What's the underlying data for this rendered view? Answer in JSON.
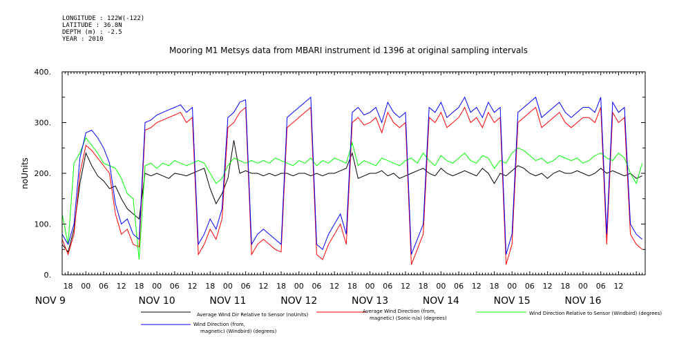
{
  "metadata": {
    "longitude": "LONGITUDE : 122W(-122)",
    "latitude": "LATITUDE : 36.8N",
    "depth": "DEPTH (m) : -2.5",
    "year": "YEAR : 2010"
  },
  "chart_data": {
    "type": "line",
    "title": "Mooring M1 Metsys data from MBARI instrument id 1396 at original sampling intervals",
    "ylabel": "noUnits",
    "xlabel": "",
    "ylim": [
      0,
      400
    ],
    "y_ticks": [
      0,
      100,
      200,
      300,
      400
    ],
    "x_range_hours": [
      -8,
      189
    ],
    "hour_tick_labels": [
      {
        "h": -6,
        "label": "18"
      },
      {
        "h": 0,
        "label": "00"
      },
      {
        "h": 6,
        "label": "06"
      },
      {
        "h": 12,
        "label": "12"
      },
      {
        "h": 18,
        "label": "18"
      },
      {
        "h": 24,
        "label": "00"
      },
      {
        "h": 30,
        "label": "06"
      },
      {
        "h": 36,
        "label": "12"
      },
      {
        "h": 42,
        "label": "18"
      },
      {
        "h": 48,
        "label": "00"
      },
      {
        "h": 54,
        "label": "06"
      },
      {
        "h": 60,
        "label": "12"
      },
      {
        "h": 66,
        "label": "18"
      },
      {
        "h": 72,
        "label": "00"
      },
      {
        "h": 78,
        "label": "06"
      },
      {
        "h": 84,
        "label": "12"
      },
      {
        "h": 90,
        "label": "18"
      },
      {
        "h": 96,
        "label": "00"
      },
      {
        "h": 102,
        "label": "06"
      },
      {
        "h": 108,
        "label": "12"
      },
      {
        "h": 114,
        "label": "18"
      },
      {
        "h": 120,
        "label": "00"
      },
      {
        "h": 126,
        "label": "06"
      },
      {
        "h": 132,
        "label": "12"
      },
      {
        "h": 138,
        "label": "18"
      },
      {
        "h": 144,
        "label": "00"
      },
      {
        "h": 150,
        "label": "06"
      },
      {
        "h": 156,
        "label": "12"
      },
      {
        "h": 162,
        "label": "18"
      },
      {
        "h": 168,
        "label": "00"
      },
      {
        "h": 174,
        "label": "06"
      },
      {
        "h": 180,
        "label": "12"
      }
    ],
    "date_labels": [
      {
        "h": -12,
        "label": "NOV 9"
      },
      {
        "h": 24,
        "label": "NOV 10"
      },
      {
        "h": 48,
        "label": "NOV 11"
      },
      {
        "h": 72,
        "label": "NOV 12"
      },
      {
        "h": 96,
        "label": "NOV 13"
      },
      {
        "h": 120,
        "label": "NOV 14"
      },
      {
        "h": 144,
        "label": "NOV 15"
      },
      {
        "h": 168,
        "label": "NOV 16"
      }
    ],
    "series": [
      {
        "name": "Average Wind Dir Relative to Sensor (noUnits)",
        "color": "#000000",
        "x": [
          -8,
          -6,
          -4,
          -2,
          0,
          2,
          4,
          6,
          8,
          10,
          12,
          14,
          16,
          18,
          20,
          22,
          24,
          26,
          28,
          30,
          32,
          34,
          36,
          38,
          40,
          42,
          44,
          46,
          48,
          50,
          52,
          54,
          56,
          58,
          60,
          62,
          64,
          66,
          68,
          70,
          72,
          74,
          76,
          78,
          80,
          82,
          84,
          86,
          88,
          90,
          92,
          94,
          96,
          98,
          100,
          102,
          104,
          106,
          108,
          110,
          112,
          114,
          116,
          118,
          120,
          122,
          124,
          126,
          128,
          130,
          132,
          134,
          136,
          138,
          140,
          142,
          144,
          146,
          148,
          150,
          152,
          154,
          156,
          158,
          160,
          162,
          164,
          166,
          168,
          170,
          172,
          174,
          176,
          178,
          180,
          182,
          184,
          186,
          188
        ],
        "y": [
          60,
          45,
          90,
          180,
          240,
          215,
          195,
          185,
          170,
          175,
          150,
          130,
          120,
          110,
          200,
          195,
          200,
          195,
          190,
          200,
          198,
          195,
          200,
          205,
          210,
          170,
          140,
          160,
          190,
          265,
          200,
          205,
          200,
          200,
          195,
          200,
          195,
          200,
          200,
          195,
          200,
          200,
          195,
          200,
          195,
          200,
          200,
          205,
          210,
          240,
          190,
          195,
          200,
          200,
          205,
          195,
          200,
          190,
          195,
          200,
          205,
          210,
          200,
          195,
          210,
          200,
          195,
          200,
          205,
          200,
          195,
          210,
          200,
          180,
          200,
          195,
          205,
          215,
          210,
          200,
          195,
          200,
          190,
          200,
          205,
          200,
          200,
          205,
          200,
          195,
          200,
          210,
          200,
          205,
          200,
          195,
          200,
          190,
          195
        ]
      },
      {
        "name": "Average Wind Direction (from, magnetic) (Sonic-n/a) (degrees)",
        "color": "#ff0000",
        "x": [
          -8,
          -6,
          -4,
          -2,
          0,
          2,
          4,
          6,
          8,
          10,
          12,
          14,
          16,
          18,
          20,
          22,
          24,
          26,
          28,
          30,
          32,
          34,
          36,
          38,
          40,
          42,
          44,
          46,
          48,
          50,
          52,
          54,
          56,
          58,
          60,
          62,
          64,
          66,
          68,
          70,
          72,
          74,
          76,
          78,
          80,
          82,
          84,
          86,
          88,
          90,
          92,
          94,
          96,
          98,
          100,
          102,
          104,
          106,
          108,
          110,
          112,
          114,
          116,
          118,
          120,
          122,
          124,
          126,
          128,
          130,
          132,
          134,
          136,
          138,
          140,
          142,
          144,
          146,
          148,
          150,
          152,
          154,
          156,
          158,
          160,
          162,
          164,
          166,
          168,
          170,
          172,
          174,
          176,
          178,
          180,
          182,
          184,
          186,
          188
        ],
        "y": [
          70,
          40,
          80,
          200,
          255,
          245,
          230,
          215,
          200,
          120,
          80,
          90,
          60,
          55,
          285,
          290,
          300,
          305,
          310,
          315,
          320,
          300,
          310,
          40,
          60,
          90,
          70,
          110,
          290,
          300,
          320,
          330,
          40,
          60,
          70,
          60,
          50,
          45,
          290,
          300,
          310,
          320,
          330,
          40,
          30,
          60,
          80,
          100,
          60,
          300,
          310,
          295,
          300,
          310,
          280,
          320,
          300,
          290,
          300,
          20,
          50,
          80,
          310,
          300,
          320,
          290,
          300,
          310,
          330,
          300,
          310,
          290,
          320,
          300,
          310,
          20,
          60,
          300,
          310,
          320,
          330,
          290,
          300,
          310,
          320,
          300,
          290,
          300,
          310,
          310,
          300,
          330,
          60,
          320,
          300,
          310,
          80,
          60,
          50
        ]
      },
      {
        "name": "Wind Direction Relative to Sensor (Windbird) (degrees)",
        "color": "#00ff00",
        "x": [
          -8,
          -6,
          -4,
          -2,
          0,
          2,
          4,
          6,
          8,
          10,
          12,
          14,
          16,
          18,
          20,
          22,
          24,
          26,
          28,
          30,
          32,
          34,
          36,
          38,
          40,
          42,
          44,
          46,
          48,
          50,
          52,
          54,
          56,
          58,
          60,
          62,
          64,
          66,
          68,
          70,
          72,
          74,
          76,
          78,
          80,
          82,
          84,
          86,
          88,
          90,
          92,
          94,
          96,
          98,
          100,
          102,
          104,
          106,
          108,
          110,
          112,
          114,
          116,
          118,
          120,
          122,
          124,
          126,
          128,
          130,
          132,
          134,
          136,
          138,
          140,
          142,
          144,
          146,
          148,
          150,
          152,
          154,
          156,
          158,
          160,
          162,
          164,
          166,
          168,
          170,
          172,
          174,
          176,
          178,
          180,
          182,
          184,
          186,
          188
        ],
        "y": [
          120,
          60,
          220,
          240,
          270,
          255,
          240,
          220,
          215,
          210,
          190,
          160,
          150,
          30,
          215,
          220,
          210,
          220,
          215,
          225,
          220,
          215,
          220,
          225,
          220,
          200,
          180,
          190,
          215,
          230,
          225,
          220,
          225,
          220,
          225,
          220,
          230,
          225,
          220,
          215,
          225,
          220,
          230,
          215,
          225,
          220,
          230,
          225,
          220,
          260,
          215,
          225,
          220,
          215,
          230,
          225,
          220,
          215,
          225,
          230,
          220,
          240,
          225,
          215,
          235,
          225,
          220,
          230,
          240,
          225,
          220,
          235,
          230,
          210,
          225,
          220,
          240,
          250,
          245,
          235,
          225,
          230,
          220,
          225,
          235,
          230,
          225,
          230,
          220,
          225,
          235,
          240,
          230,
          225,
          240,
          230,
          200,
          180,
          220
        ]
      },
      {
        "name": "Wind Direction (from, magnetic) (Windbird) (degrees)",
        "color": "#0000ff",
        "x": [
          -8,
          -6,
          -4,
          -2,
          0,
          2,
          4,
          6,
          8,
          10,
          12,
          14,
          16,
          18,
          20,
          22,
          24,
          26,
          28,
          30,
          32,
          34,
          36,
          38,
          40,
          42,
          44,
          46,
          48,
          50,
          52,
          54,
          56,
          58,
          60,
          62,
          64,
          66,
          68,
          70,
          72,
          74,
          76,
          78,
          80,
          82,
          84,
          86,
          88,
          90,
          92,
          94,
          96,
          98,
          100,
          102,
          104,
          106,
          108,
          110,
          112,
          114,
          116,
          118,
          120,
          122,
          124,
          126,
          128,
          130,
          132,
          134,
          136,
          138,
          140,
          142,
          144,
          146,
          148,
          150,
          152,
          154,
          156,
          158,
          160,
          162,
          164,
          166,
          168,
          170,
          172,
          174,
          176,
          178,
          180,
          182,
          184,
          186,
          188
        ],
        "y": [
          80,
          60,
          100,
          230,
          280,
          285,
          270,
          250,
          220,
          140,
          100,
          110,
          80,
          70,
          300,
          305,
          315,
          320,
          325,
          330,
          335,
          320,
          330,
          60,
          80,
          110,
          90,
          130,
          310,
          320,
          340,
          345,
          60,
          80,
          90,
          80,
          70,
          60,
          310,
          320,
          330,
          340,
          350,
          60,
          50,
          80,
          100,
          120,
          80,
          320,
          330,
          315,
          320,
          330,
          300,
          340,
          320,
          310,
          320,
          40,
          70,
          100,
          330,
          320,
          340,
          310,
          320,
          330,
          350,
          320,
          330,
          310,
          340,
          320,
          330,
          40,
          80,
          320,
          330,
          340,
          350,
          310,
          320,
          330,
          340,
          320,
          310,
          320,
          330,
          330,
          320,
          350,
          80,
          340,
          320,
          330,
          100,
          80,
          70
        ]
      }
    ]
  }
}
